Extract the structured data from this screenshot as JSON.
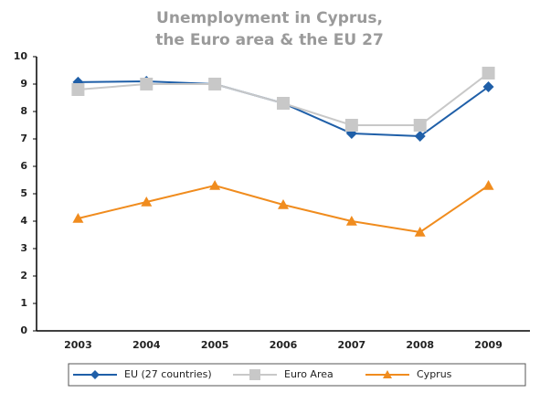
{
  "chart_data": {
    "type": "line",
    "title": [
      "Unemployment in Cyprus,",
      "the Euro area & the EU 27"
    ],
    "categories": [
      "2003",
      "2004",
      "2005",
      "2006",
      "2007",
      "2008",
      "2009"
    ],
    "series": [
      {
        "name": "EU (27 countries)",
        "color": "#1f5fa8",
        "marker": "diamond",
        "values": [
          9.07,
          9.1,
          9.0,
          8.3,
          7.2,
          7.1,
          8.9
        ]
      },
      {
        "name": "Euro Area",
        "color": "#c8c8c8",
        "marker": "square",
        "values": [
          8.8,
          9.0,
          9.0,
          8.3,
          7.5,
          7.5,
          9.4
        ]
      },
      {
        "name": "Cyprus",
        "color": "#f08c1e",
        "marker": "triangle",
        "values": [
          4.1,
          4.7,
          5.3,
          4.6,
          4.0,
          3.6,
          5.3
        ]
      }
    ],
    "ylim": [
      0,
      10
    ],
    "yticks": [
      0,
      1,
      2,
      3,
      4,
      5,
      6,
      7,
      8,
      9,
      10
    ],
    "grid": false,
    "legend": "bottom"
  }
}
